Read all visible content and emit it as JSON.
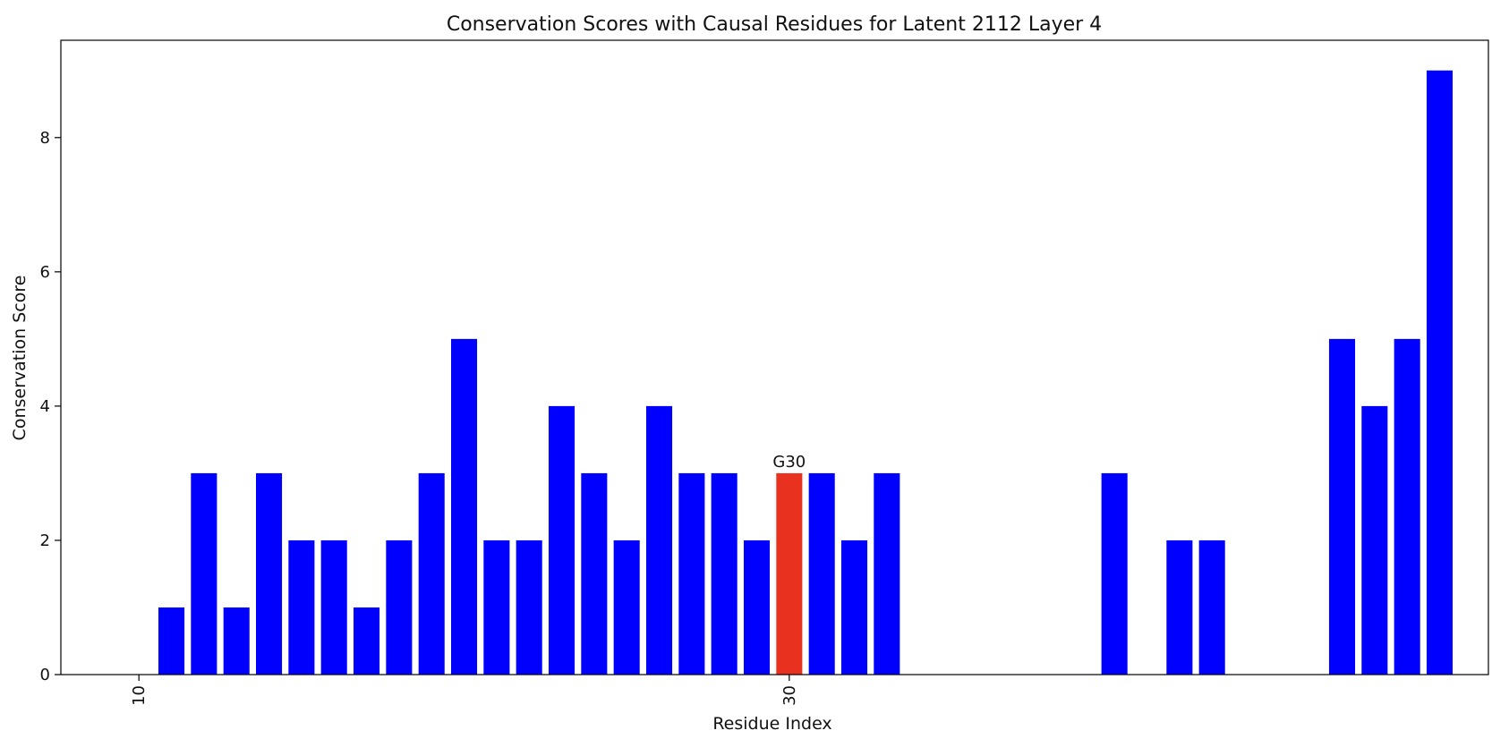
{
  "chart_data": {
    "type": "bar",
    "title": "Conservation Scores with Causal Residues for Latent 2112 Layer 4",
    "xlabel": "Residue Index",
    "ylabel": "Conservation Score",
    "xlim": [
      7.6,
      51.5
    ],
    "ylim": [
      0,
      9.45
    ],
    "xticks": [
      10,
      30
    ],
    "yticks": [
      0,
      2,
      4,
      6,
      8
    ],
    "grid": false,
    "legend": "none",
    "colors": {
      "default": "#0000ff",
      "causal": "#e8321f"
    },
    "x": [
      11,
      12,
      13,
      14,
      15,
      16,
      17,
      18,
      19,
      20,
      21,
      22,
      23,
      24,
      25,
      26,
      27,
      28,
      29,
      30,
      31,
      32,
      33,
      40,
      42,
      43,
      47,
      48,
      49,
      50
    ],
    "values": [
      1,
      3,
      1,
      3,
      2,
      2,
      1,
      2,
      3,
      5,
      2,
      2,
      4,
      3,
      2,
      4,
      3,
      3,
      2,
      3,
      3,
      2,
      3,
      3,
      2,
      2,
      5,
      4,
      5,
      9
    ],
    "highlight": [
      {
        "x": 30,
        "label": "G30"
      }
    ]
  }
}
